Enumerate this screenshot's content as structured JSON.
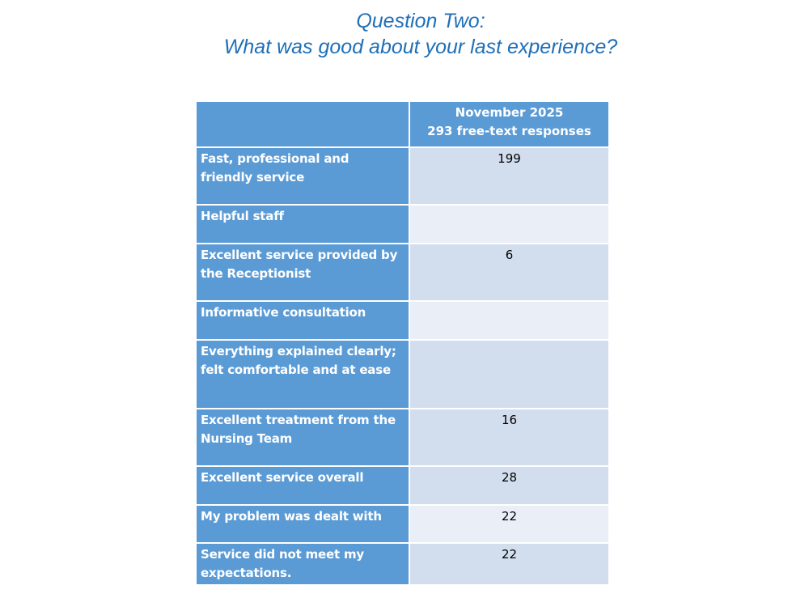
{
  "title": {
    "line1": "Question Two:",
    "line2": "What was good about your last experience?"
  },
  "table": {
    "header": {
      "line1": "November 2025",
      "line2": "293 free-text responses"
    },
    "rows": [
      {
        "label": "Fast, professional and friendly service",
        "value": "199"
      },
      {
        "label": "Helpful staff",
        "value": ""
      },
      {
        "label": "Excellent service provided by the Receptionist",
        "value": "6"
      },
      {
        "label": "Informative consultation",
        "value": ""
      },
      {
        "label": "Everything explained clearly; felt comfortable and at ease",
        "value": ""
      },
      {
        "label": "Excellent treatment from the Nursing Team",
        "value": "16"
      },
      {
        "label": "Excellent service overall",
        "value": "28"
      },
      {
        "label": "My problem was dealt with",
        "value": "22"
      },
      {
        "label": "Service did not meet my expectations.",
        "value": "22"
      }
    ]
  }
}
